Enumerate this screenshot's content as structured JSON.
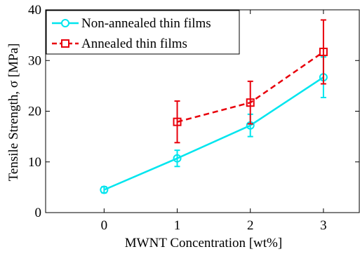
{
  "chart_data": {
    "type": "line",
    "xlabel": "MWNT Concentration [wt%]",
    "ylabel": "Tensile Strength, σ [MPa]",
    "xlim": [
      -0.8,
      3.5
    ],
    "ylim": [
      0,
      40
    ],
    "x_ticks": [
      "0",
      "1",
      "2",
      "3"
    ],
    "y_ticks": [
      "0",
      "10",
      "20",
      "30",
      "40"
    ],
    "grid": false,
    "legend_position": "top-left",
    "series": [
      {
        "name": "Non-annealed thin films",
        "color": "#00e5ee",
        "marker": "circle",
        "line_style": "solid",
        "x": [
          0,
          1,
          2,
          3
        ],
        "y": [
          4.5,
          10.7,
          17.2,
          26.7
        ],
        "error": [
          0.6,
          1.6,
          2.2,
          4.0
        ]
      },
      {
        "name": "Annealed thin films",
        "color": "#e8000b",
        "marker": "square",
        "line_style": "dashed",
        "x": [
          1,
          2,
          3
        ],
        "y": [
          17.9,
          21.7,
          31.7
        ],
        "error": [
          4.1,
          4.2,
          6.3
        ]
      }
    ]
  }
}
